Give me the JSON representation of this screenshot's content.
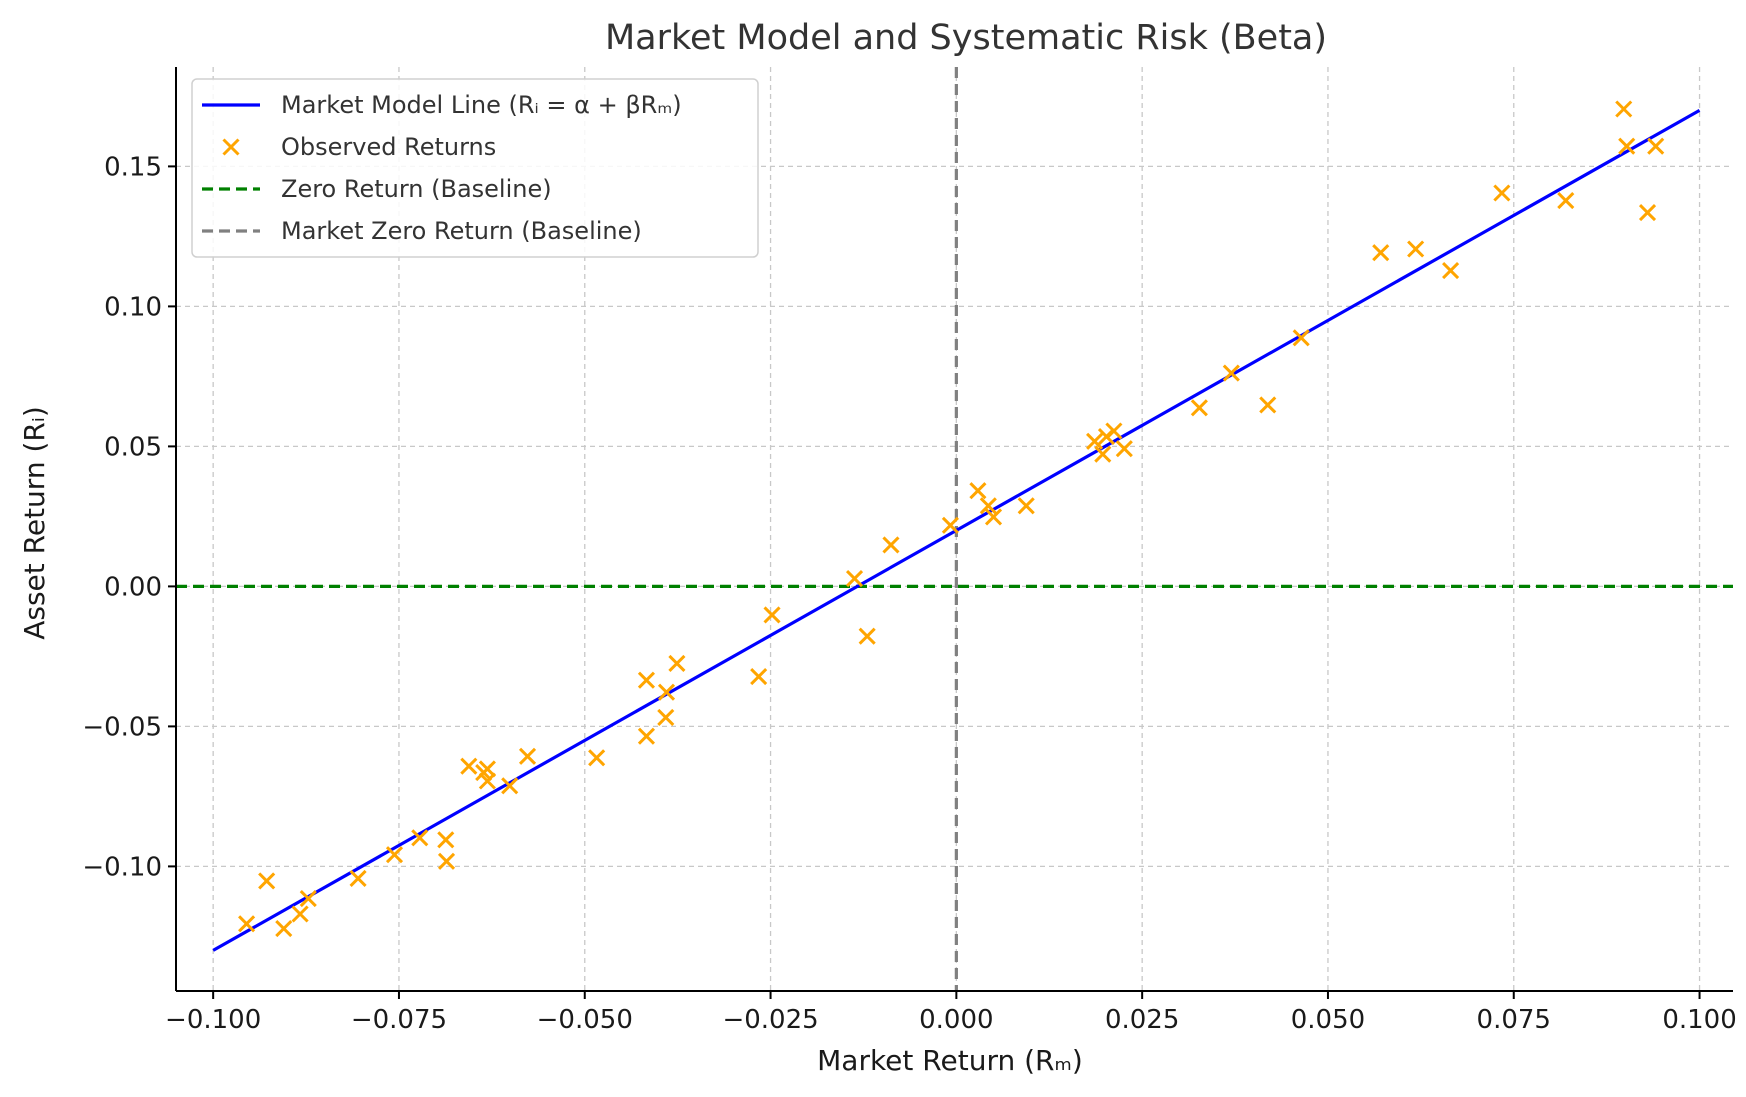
{
  "chart_data": {
    "type": "scatter",
    "title": "Market Model and Systematic Risk (Beta)",
    "xlabel": "Market Return (Rₘ)",
    "ylabel": "Asset Return (Rᵢ)",
    "xlim": [
      -0.105,
      0.1045
    ],
    "ylim": [
      -0.1445,
      0.1855
    ],
    "xticks": [
      -0.1,
      -0.075,
      -0.05,
      -0.025,
      0.0,
      0.025,
      0.05,
      0.075,
      0.1
    ],
    "xtick_labels": [
      "−0.100",
      "−0.075",
      "−0.050",
      "−0.025",
      "0.000",
      "0.025",
      "0.050",
      "0.075",
      "0.100"
    ],
    "yticks": [
      -0.1,
      -0.05,
      0.0,
      0.05,
      0.1,
      0.15
    ],
    "ytick_labels": [
      "−0.10",
      "−0.05",
      "0.00",
      "0.05",
      "0.10",
      "0.15"
    ],
    "grid": true,
    "legend_position": "top-left",
    "series": [
      {
        "name": "Market Model Line (Rᵢ = α + βRₘ)",
        "kind": "line",
        "color": "#0000ff",
        "x": [
          -0.1,
          0.1
        ],
        "y": [
          -0.13,
          0.17
        ]
      },
      {
        "name": "Observed Returns",
        "kind": "scatter",
        "marker": "x",
        "color": "#ffa500",
        "points": [
          [
            -0.0955,
            -0.1205
          ],
          [
            -0.0928,
            -0.1052
          ],
          [
            -0.0905,
            -0.1222
          ],
          [
            -0.0883,
            -0.117
          ],
          [
            -0.0872,
            -0.1115
          ],
          [
            -0.0805,
            -0.1043
          ],
          [
            -0.0756,
            -0.0958
          ],
          [
            -0.0722,
            -0.0898
          ],
          [
            -0.0687,
            -0.0905
          ],
          [
            -0.0686,
            -0.0982
          ],
          [
            -0.0656,
            -0.0642
          ],
          [
            -0.0636,
            -0.0665
          ],
          [
            -0.0631,
            -0.0652
          ],
          [
            -0.0631,
            -0.0695
          ],
          [
            -0.0601,
            -0.0712
          ],
          [
            -0.0577,
            -0.0607
          ],
          [
            -0.0484,
            -0.0612
          ],
          [
            -0.0417,
            -0.0335
          ],
          [
            -0.0417,
            -0.0535
          ],
          [
            -0.0391,
            -0.0468
          ],
          [
            -0.039,
            -0.0378
          ],
          [
            -0.0376,
            -0.0275
          ],
          [
            -0.0266,
            -0.0322
          ],
          [
            -0.0248,
            -0.0102
          ],
          [
            -0.0137,
            0.0028
          ],
          [
            -0.012,
            -0.0178
          ],
          [
            -0.0088,
            0.0148
          ],
          [
            -0.0008,
            0.0218
          ],
          [
            0.0029,
            0.0342
          ],
          [
            0.0043,
            0.0288
          ],
          [
            0.005,
            0.0248
          ],
          [
            0.0094,
            0.0288
          ],
          [
            0.0186,
            0.0518
          ],
          [
            0.0197,
            0.0472
          ],
          [
            0.0202,
            0.0535
          ],
          [
            0.0212,
            0.0555
          ],
          [
            0.0226,
            0.0492
          ],
          [
            0.0327,
            0.0638
          ],
          [
            0.037,
            0.0762
          ],
          [
            0.0419,
            0.0648
          ],
          [
            0.0464,
            0.0888
          ],
          [
            0.0571,
            0.1192
          ],
          [
            0.0618,
            0.1205
          ],
          [
            0.0665,
            0.1128
          ],
          [
            0.0734,
            0.1405
          ],
          [
            0.082,
            0.1378
          ],
          [
            0.0898,
            0.1705
          ],
          [
            0.0902,
            0.1572
          ],
          [
            0.093,
            0.1335
          ],
          [
            0.0941,
            0.1572
          ]
        ]
      },
      {
        "name": "Zero Return (Baseline)",
        "kind": "hline",
        "color": "#008000",
        "y": 0.0
      },
      {
        "name": "Market Zero Return (Baseline)",
        "kind": "vline",
        "color": "#808080",
        "x": 0.0
      }
    ]
  }
}
